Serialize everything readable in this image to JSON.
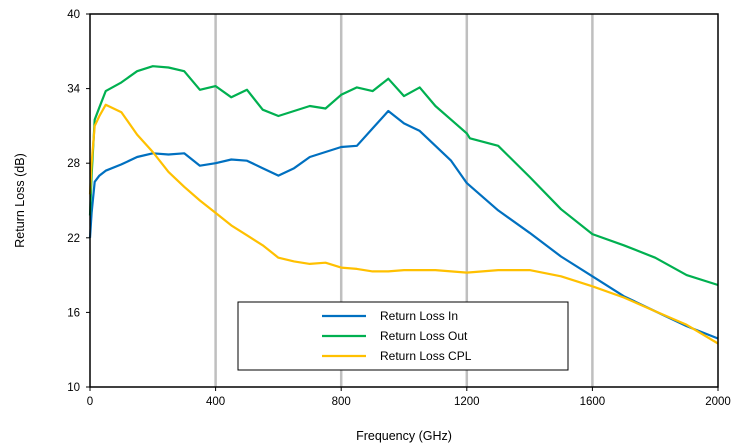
{
  "chart_data": {
    "type": "line",
    "title": "",
    "xlabel": "Frequency (GHz)",
    "ylabel": "Return Loss (dB)",
    "xlim": [
      0,
      2000
    ],
    "ylim": [
      10,
      40
    ],
    "xticks": [
      0,
      400,
      800,
      1200,
      1600,
      2000
    ],
    "yticks": [
      10,
      16,
      22,
      28,
      34,
      40
    ],
    "grid": "vertical lines only",
    "legend_position": "bottom-center",
    "series": [
      {
        "name": "Return Loss In",
        "color": "#0070c0",
        "points": [
          [
            0,
            22
          ],
          [
            5,
            24
          ],
          [
            15,
            26.5
          ],
          [
            30,
            27
          ],
          [
            50,
            27.4
          ],
          [
            100,
            27.9
          ],
          [
            150,
            28.5
          ],
          [
            200,
            28.8
          ],
          [
            250,
            28.7
          ],
          [
            300,
            28.8
          ],
          [
            350,
            27.8
          ],
          [
            400,
            28
          ],
          [
            450,
            28.3
          ],
          [
            500,
            28.2
          ],
          [
            550,
            27.6
          ],
          [
            600,
            27
          ],
          [
            650,
            27.6
          ],
          [
            700,
            28.5
          ],
          [
            750,
            28.9
          ],
          [
            800,
            29.3
          ],
          [
            850,
            29.4
          ],
          [
            900,
            30.8
          ],
          [
            950,
            32.2
          ],
          [
            1000,
            31.2
          ],
          [
            1050,
            30.6
          ],
          [
            1100,
            29.4
          ],
          [
            1150,
            28.2
          ],
          [
            1200,
            26.4
          ],
          [
            1300,
            24.2
          ],
          [
            1400,
            22.4
          ],
          [
            1500,
            20.5
          ],
          [
            1600,
            18.9
          ],
          [
            1700,
            17.3
          ],
          [
            1800,
            16.1
          ],
          [
            1900,
            14.9
          ],
          [
            2000,
            13.9
          ]
        ]
      },
      {
        "name": "Return Loss Out",
        "color": "#00b050",
        "points": [
          [
            0,
            23.8
          ],
          [
            5,
            27
          ],
          [
            15,
            31.5
          ],
          [
            30,
            32.5
          ],
          [
            50,
            33.8
          ],
          [
            100,
            34.5
          ],
          [
            150,
            35.4
          ],
          [
            200,
            35.8
          ],
          [
            250,
            35.7
          ],
          [
            300,
            35.4
          ],
          [
            350,
            33.9
          ],
          [
            400,
            34.2
          ],
          [
            450,
            33.3
          ],
          [
            500,
            33.9
          ],
          [
            550,
            32.3
          ],
          [
            600,
            31.8
          ],
          [
            650,
            32.2
          ],
          [
            700,
            32.6
          ],
          [
            750,
            32.4
          ],
          [
            800,
            33.5
          ],
          [
            850,
            34.1
          ],
          [
            900,
            33.8
          ],
          [
            950,
            34.8
          ],
          [
            1000,
            33.4
          ],
          [
            1050,
            34.1
          ],
          [
            1100,
            32.6
          ],
          [
            1150,
            31.5
          ],
          [
            1200,
            30.4
          ],
          [
            1210,
            30
          ],
          [
            1300,
            29.4
          ],
          [
            1400,
            26.9
          ],
          [
            1500,
            24.3
          ],
          [
            1600,
            22.3
          ],
          [
            1700,
            21.4
          ],
          [
            1800,
            20.4
          ],
          [
            1900,
            19
          ],
          [
            2000,
            18.2
          ]
        ]
      },
      {
        "name": "Return Loss CPL",
        "color": "#ffc000",
        "points": [
          [
            0,
            25.5
          ],
          [
            5,
            28
          ],
          [
            15,
            31
          ],
          [
            30,
            31.8
          ],
          [
            50,
            32.7
          ],
          [
            100,
            32.1
          ],
          [
            150,
            30.3
          ],
          [
            200,
            28.9
          ],
          [
            250,
            27.3
          ],
          [
            300,
            26.1
          ],
          [
            350,
            25
          ],
          [
            400,
            24
          ],
          [
            450,
            23
          ],
          [
            500,
            22.2
          ],
          [
            550,
            21.4
          ],
          [
            600,
            20.4
          ],
          [
            650,
            20.1
          ],
          [
            700,
            19.9
          ],
          [
            750,
            20
          ],
          [
            800,
            19.6
          ],
          [
            850,
            19.5
          ],
          [
            900,
            19.3
          ],
          [
            950,
            19.3
          ],
          [
            1000,
            19.4
          ],
          [
            1100,
            19.4
          ],
          [
            1200,
            19.2
          ],
          [
            1300,
            19.4
          ],
          [
            1400,
            19.4
          ],
          [
            1500,
            18.9
          ],
          [
            1600,
            18.1
          ],
          [
            1700,
            17.2
          ],
          [
            1800,
            16.1
          ],
          [
            1900,
            15
          ],
          [
            2000,
            13.5
          ]
        ]
      }
    ]
  }
}
